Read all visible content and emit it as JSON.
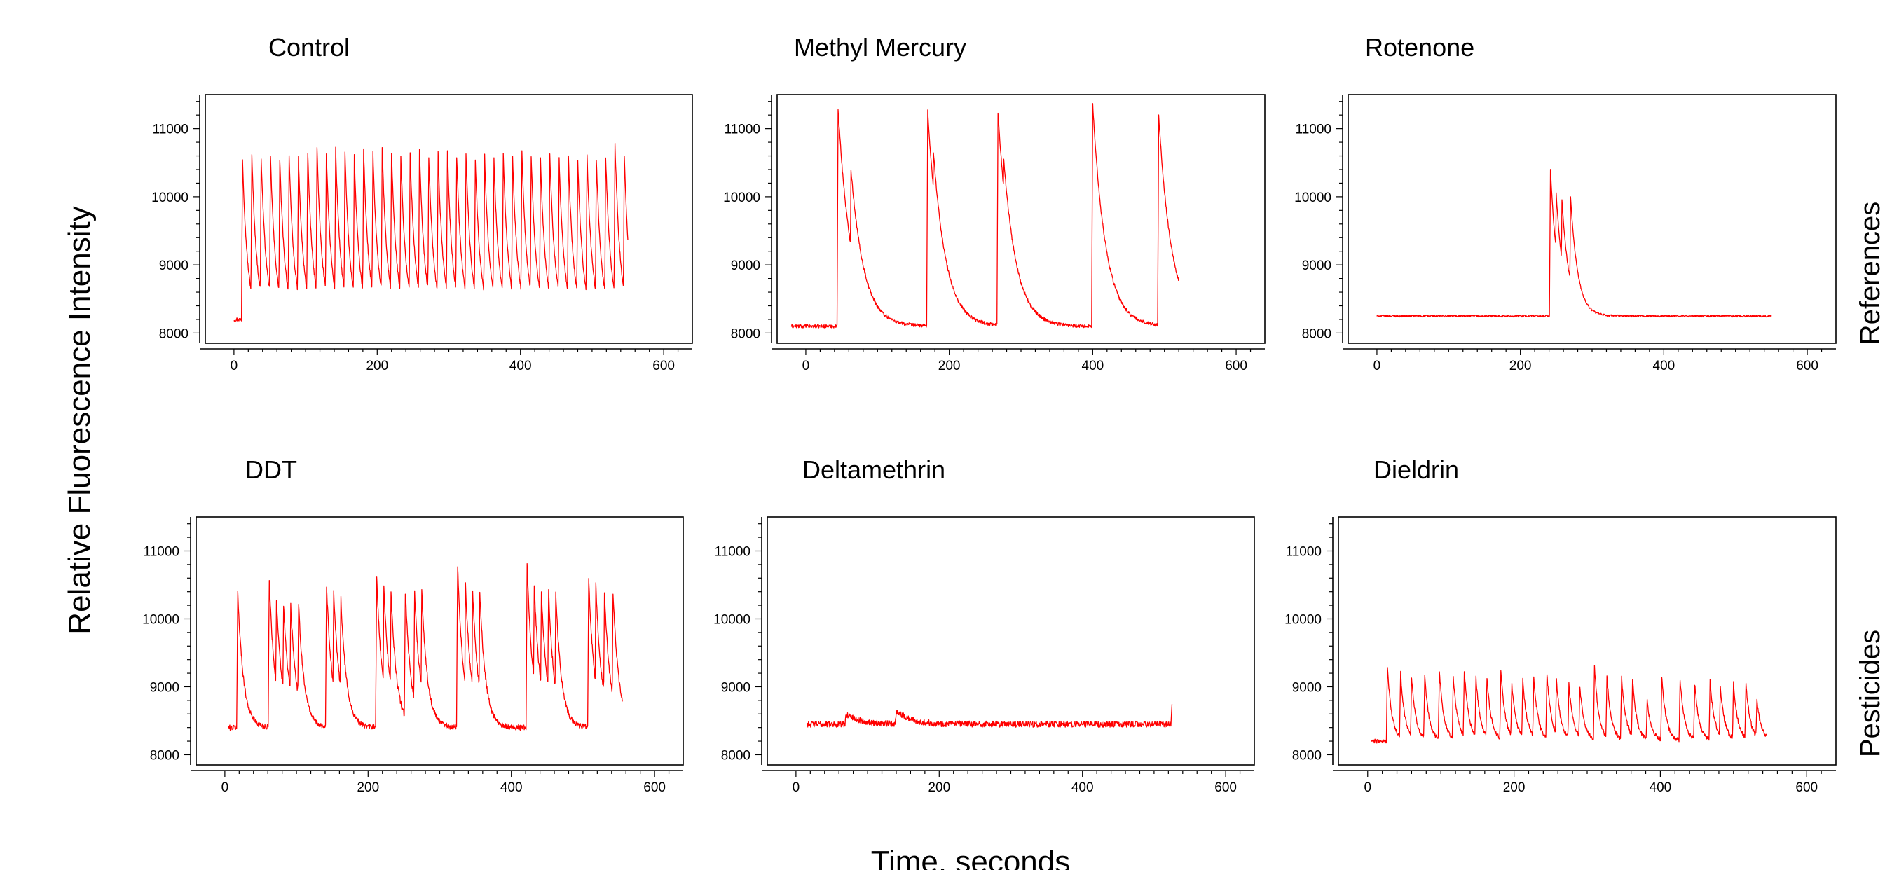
{
  "figure": {
    "ylabel": "Relative Fluorescence Intensity",
    "xlabel": "Time, seconds",
    "row_labels": [
      "References",
      "Pesticides"
    ],
    "line_color": "#ff0000"
  },
  "chart_data": [
    {
      "type": "line",
      "title": "Control",
      "row": 0,
      "col": 0,
      "xlim": [
        -40,
        640
      ],
      "ylim": [
        7850,
        11500
      ],
      "xticks": [
        0,
        200,
        400,
        600
      ],
      "yticks": [
        8000,
        9000,
        10000,
        11000
      ],
      "x_range": [
        0,
        550
      ],
      "baseline": 8200,
      "decay": 7,
      "noise": 30,
      "peaks": [
        [
          12,
          10550
        ],
        [
          25,
          10600
        ],
        [
          38,
          10580
        ],
        [
          51,
          10600
        ],
        [
          64,
          10550
        ],
        [
          77,
          10600
        ],
        [
          90,
          10580
        ],
        [
          103,
          10650
        ],
        [
          116,
          10700
        ],
        [
          129,
          10650
        ],
        [
          142,
          10700
        ],
        [
          155,
          10650
        ],
        [
          168,
          10600
        ],
        [
          181,
          10700
        ],
        [
          194,
          10650
        ],
        [
          207,
          10700
        ],
        [
          220,
          10650
        ],
        [
          233,
          10600
        ],
        [
          246,
          10650
        ],
        [
          259,
          10700
        ],
        [
          272,
          10600
        ],
        [
          285,
          10650
        ],
        [
          298,
          10700
        ],
        [
          311,
          10600
        ],
        [
          324,
          10650
        ],
        [
          337,
          10550
        ],
        [
          350,
          10600
        ],
        [
          363,
          10550
        ],
        [
          376,
          10650
        ],
        [
          389,
          10600
        ],
        [
          402,
          10700
        ],
        [
          415,
          10600
        ],
        [
          428,
          10550
        ],
        [
          441,
          10650
        ],
        [
          454,
          10550
        ],
        [
          467,
          10600
        ],
        [
          480,
          10550
        ],
        [
          493,
          10600
        ],
        [
          506,
          10550
        ],
        [
          519,
          10600
        ],
        [
          532,
          10800
        ],
        [
          545,
          10600
        ]
      ]
    },
    {
      "type": "line",
      "title": "Methyl Mercury",
      "row": 0,
      "col": 1,
      "xlim": [
        -40,
        640
      ],
      "ylim": [
        7850,
        11500
      ],
      "xticks": [
        0,
        200,
        400,
        600
      ],
      "yticks": [
        8000,
        9000,
        10000,
        11000
      ],
      "x_range": [
        -20,
        520
      ],
      "baseline": 8100,
      "decay": 18,
      "noise": 25,
      "peaks": [
        [
          45,
          11300
        ],
        [
          63,
          10400
        ],
        [
          170,
          11250
        ],
        [
          178,
          10650
        ],
        [
          268,
          11250
        ],
        [
          276,
          10550
        ],
        [
          400,
          11350
        ],
        [
          492,
          11200
        ]
      ]
    },
    {
      "type": "line",
      "title": "Rotenone",
      "row": 0,
      "col": 2,
      "xlim": [
        -40,
        640
      ],
      "ylim": [
        7850,
        11500
      ],
      "xticks": [
        0,
        200,
        400,
        600
      ],
      "yticks": [
        8000,
        9000,
        10000,
        11000
      ],
      "x_range": [
        0,
        550
      ],
      "baseline": 8250,
      "decay": 10,
      "noise": 15,
      "peaks": [
        [
          242,
          10400
        ],
        [
          250,
          10050
        ],
        [
          258,
          9950
        ],
        [
          270,
          10000
        ]
      ]
    },
    {
      "type": "line",
      "title": "DDT",
      "row": 1,
      "col": 0,
      "xlim": [
        -40,
        640
      ],
      "ylim": [
        7850,
        11500
      ],
      "xticks": [
        0,
        200,
        400,
        600
      ],
      "yticks": [
        8000,
        9000,
        10000,
        11000
      ],
      "x_range": [
        5,
        555
      ],
      "baseline": 8400,
      "decay": 8,
      "noise": 40,
      "peaks": [
        [
          18,
          10400
        ],
        [
          62,
          10600
        ],
        [
          72,
          10300
        ],
        [
          82,
          10200
        ],
        [
          92,
          10200
        ],
        [
          103,
          10200
        ],
        [
          142,
          10500
        ],
        [
          152,
          10400
        ],
        [
          162,
          10300
        ],
        [
          212,
          10600
        ],
        [
          222,
          10500
        ],
        [
          232,
          10400
        ],
        [
          252,
          10400
        ],
        [
          265,
          10400
        ],
        [
          275,
          10400
        ],
        [
          325,
          10800
        ],
        [
          336,
          10500
        ],
        [
          346,
          10400
        ],
        [
          356,
          10400
        ],
        [
          422,
          10800
        ],
        [
          432,
          10500
        ],
        [
          442,
          10400
        ],
        [
          452,
          10400
        ],
        [
          462,
          10400
        ],
        [
          508,
          10600
        ],
        [
          518,
          10500
        ],
        [
          530,
          10400
        ],
        [
          542,
          10400
        ]
      ]
    },
    {
      "type": "line",
      "title": "Deltamethrin",
      "row": 1,
      "col": 1,
      "xlim": [
        -40,
        640
      ],
      "ylim": [
        7850,
        11500
      ],
      "xticks": [
        0,
        200,
        400,
        600
      ],
      "yticks": [
        8000,
        9000,
        10000,
        11000
      ],
      "x_range": [
        15,
        525
      ],
      "baseline": 8450,
      "decay": 20,
      "noise": 45,
      "peaks": [
        [
          70,
          8600
        ],
        [
          140,
          8650
        ],
        [
          525,
          8700
        ]
      ]
    },
    {
      "type": "line",
      "title": "Dieldrin",
      "row": 1,
      "col": 2,
      "xlim": [
        -40,
        640
      ],
      "ylim": [
        7850,
        11500
      ],
      "xticks": [
        0,
        200,
        400,
        600
      ],
      "yticks": [
        8000,
        9000,
        10000,
        11000
      ],
      "x_range": [
        5,
        545
      ],
      "baseline": 8200,
      "decay": 6,
      "noise": 30,
      "peaks": [
        [
          27,
          9300
        ],
        [
          45,
          9200
        ],
        [
          60,
          9150
        ],
        [
          78,
          9150
        ],
        [
          98,
          9250
        ],
        [
          117,
          9150
        ],
        [
          132,
          9250
        ],
        [
          148,
          9150
        ],
        [
          163,
          9150
        ],
        [
          182,
          9250
        ],
        [
          197,
          9050
        ],
        [
          212,
          9100
        ],
        [
          227,
          9150
        ],
        [
          245,
          9200
        ],
        [
          258,
          9100
        ],
        [
          275,
          9050
        ],
        [
          290,
          9000
        ],
        [
          310,
          9300
        ],
        [
          327,
          9150
        ],
        [
          347,
          9150
        ],
        [
          362,
          9100
        ],
        [
          382,
          8800
        ],
        [
          402,
          9150
        ],
        [
          427,
          9100
        ],
        [
          447,
          9050
        ],
        [
          468,
          9100
        ],
        [
          482,
          9000
        ],
        [
          500,
          9050
        ],
        [
          517,
          9050
        ],
        [
          532,
          8800
        ]
      ]
    }
  ]
}
